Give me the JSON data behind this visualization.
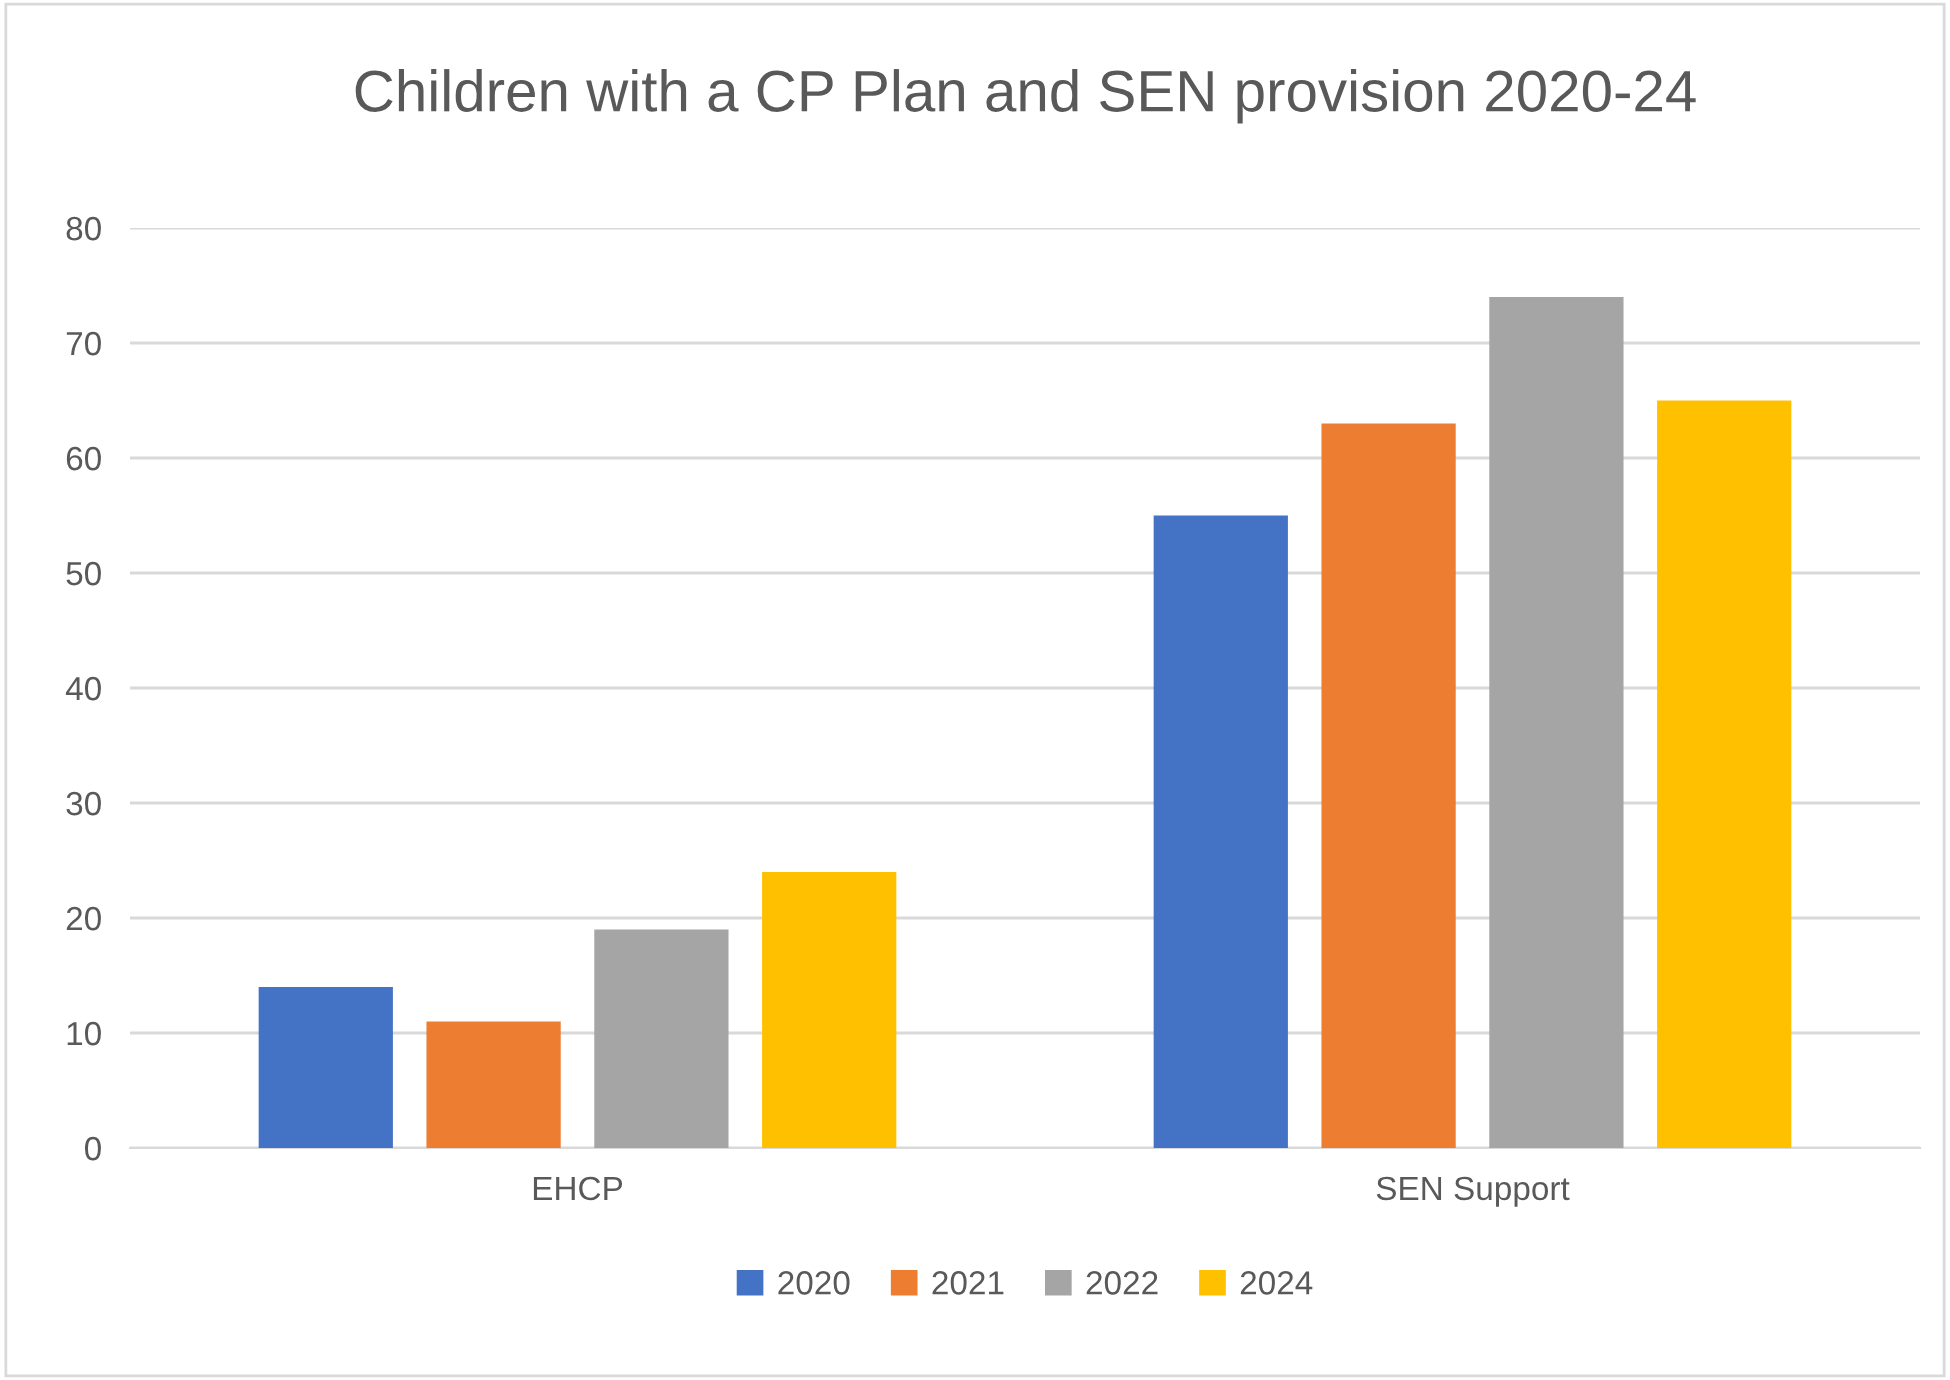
{
  "chart_data": {
    "type": "bar",
    "title": "Children with a CP Plan and SEN provision 2020-24",
    "categories": [
      "EHCP",
      "SEN Support"
    ],
    "series": [
      {
        "name": "2020",
        "color": "#4472c4",
        "values": [
          14,
          55
        ]
      },
      {
        "name": "2021",
        "color": "#ed7d31",
        "values": [
          11,
          63
        ]
      },
      {
        "name": "2022",
        "color": "#a5a5a5",
        "values": [
          19,
          74
        ]
      },
      {
        "name": "2024",
        "color": "#ffc000",
        "values": [
          24,
          65
        ]
      }
    ],
    "ylim": [
      0,
      80
    ],
    "yticks": [
      0,
      10,
      20,
      30,
      40,
      50,
      60,
      70,
      80
    ],
    "grid": "y",
    "legend": "bottom"
  }
}
